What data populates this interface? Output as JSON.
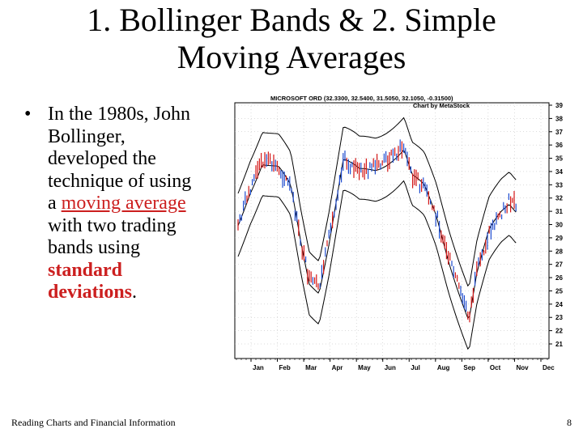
{
  "slide": {
    "title_line1": "1. Bollinger Bands & 2. Simple",
    "title_line2": "Moving Averages",
    "bullet": {
      "text_1": "In the 1980s, John\nBollinger,\ndeveloped the\ntechnique of using\na ",
      "link_text": "moving average",
      "text_2": "\nwith two trading\nbands using\n",
      "emphasis": "standard\ndeviations",
      "text_3": "."
    },
    "footer_left": "Reading Charts and Financial Information",
    "page_number": "8"
  },
  "chart": {
    "header": "MICROSOFT ORD (32.3300, 32.5400, 31.5050, 32.1050, -0.31500)",
    "credit": "Chart by MetaStock",
    "y_ticks": [
      "39",
      "38",
      "37",
      "36",
      "35",
      "34",
      "33",
      "32",
      "31",
      "30",
      "29",
      "28",
      "27",
      "26",
      "25",
      "24",
      "23",
      "22",
      "21"
    ],
    "x_ticks": [
      "Jan",
      "Feb",
      "Mar",
      "Apr",
      "May",
      "Jun",
      "Jul",
      "Aug",
      "Sep",
      "Oct",
      "Nov",
      "Dec"
    ],
    "colors": {
      "up_bar": "#1f4ccf",
      "down_bar": "#d41818",
      "band": "#000000",
      "grid": "#b8b8b8"
    }
  }
}
